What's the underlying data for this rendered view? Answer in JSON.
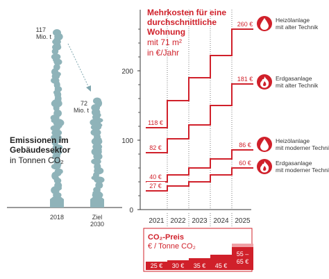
{
  "emissions": {
    "title_line1": "Emissionen im",
    "title_line2": "Gebäudesektor",
    "unit": "in Tonnen CO₂",
    "value_2018_number": "117",
    "value_2018_unit": "Mio. t",
    "value_2030_number": "72",
    "value_2030_unit": "Mio. t",
    "year_2018": "2018",
    "year_2030_line1": "Ziel",
    "year_2030_line2": "2030"
  },
  "costs": {
    "title_line1": "Mehrkosten für eine",
    "title_line2": "durchschnittliche",
    "title_line3": "Wohnung",
    "sub_line1": "mit 71 m²",
    "sub_line2": "in €/Jahr"
  },
  "co2_price": {
    "title": "CO₂-Preis",
    "unit": "€ / Tonne CO₂",
    "values": [
      "25 €",
      "30 €",
      "35 €",
      "45 €"
    ],
    "last_line1": "55 –",
    "last_line2": "65 €"
  },
  "colors": {
    "red": "#d0202a",
    "light_red": "#f0a0a5",
    "teal": "#8fb3b9",
    "axis": "#333333",
    "grid": "#222222",
    "icon_bg": "#d0202a"
  },
  "icons": [
    "oil-drop-icon",
    "gas-flame-icon",
    "oil-drop-icon",
    "gas-flame-icon"
  ],
  "chart_data": [
    {
      "type": "bar",
      "title": "Emissionen im Gebäudesektor",
      "ylabel": "in Tonnen CO₂",
      "categories": [
        "2018",
        "Ziel 2030"
      ],
      "values": [
        117,
        72
      ],
      "unit": "Mio. t"
    },
    {
      "type": "line",
      "title": "Mehrkosten für eine durchschnittliche Wohnung",
      "subtitle": "mit 71 m² in €/Jahr",
      "x": [
        "2021",
        "2022",
        "2023",
        "2024",
        "2025"
      ],
      "ylim": [
        0,
        280
      ],
      "yticks": [
        0,
        100,
        200
      ],
      "series": [
        {
          "name": "Heizölanlage mit alter Technik",
          "values": [
            118,
            157,
            190,
            222,
            260
          ],
          "start_label": "118 €",
          "end_label": "260 €",
          "icon": "oil-drop-icon"
        },
        {
          "name": "Erdgasanlage mit alter Technik",
          "values": [
            82,
            102,
            122,
            150,
            181
          ],
          "start_label": "82 €",
          "end_label": "181 €",
          "icon": "gas-flame-icon"
        },
        {
          "name": "Heizölanlage mit moderner Technik",
          "values": [
            40,
            50,
            60,
            73,
            86
          ],
          "start_label": "40 €",
          "end_label": "86 €",
          "icon": "oil-drop-icon"
        },
        {
          "name": "Erdgasanlage mit moderner Technik",
          "values": [
            27,
            34,
            40,
            50,
            60
          ],
          "start_label": "27 €",
          "end_label": "60 €",
          "icon": "gas-flame-icon"
        }
      ]
    }
  ]
}
